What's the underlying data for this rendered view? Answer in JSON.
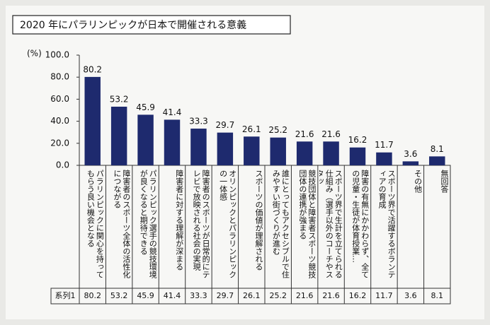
{
  "chart_data": {
    "type": "bar",
    "title": "2020 年にパラリンピックが日本で開催される意義",
    "y_label": "(%)",
    "categories": [
      "パラリンピックに関心を持ってもらう良い機会となる",
      "障害者のスポーツ全体の活性化につながる",
      "パラリンピック選手の競技環境が良くなると期待できる",
      "障害者に対する理解が深まる",
      "障害者のスポーツが日常的にテレビで放映される社会の実現",
      "オリンピックとパラリンピックの一体感",
      "スポーツの価値が理解される",
      "誰にとってもアクセシブルで住みやすい街づくりが進む",
      "競技団体と障害者スポーツ競技団体の連携が強まる",
      "スポーツ界で生計を立てられる仕組み（選手以外のコーチやスタッ…",
      "障害の有無にかかわらず、全ての児童・生徒が体育授業…",
      "スポーツ界で活躍するボランティアの育成",
      "その他",
      "無回答"
    ],
    "series": [
      {
        "name": "系列1",
        "color": "#1e2a6e",
        "values": [
          80.2,
          53.2,
          45.9,
          41.4,
          33.3,
          29.7,
          26.1,
          25.2,
          21.6,
          21.6,
          16.2,
          11.7,
          3.6,
          8.1
        ]
      }
    ],
    "ylim": [
      0,
      100
    ],
    "yticks": [
      {
        "value": 0,
        "label": "0.0"
      },
      {
        "value": 20,
        "label": "20.0"
      },
      {
        "value": 40,
        "label": "40.0"
      },
      {
        "value": 60,
        "label": "60.0"
      },
      {
        "value": 80,
        "label": "80.0"
      },
      {
        "value": 100,
        "label": "100.0"
      }
    ],
    "grid": false
  }
}
